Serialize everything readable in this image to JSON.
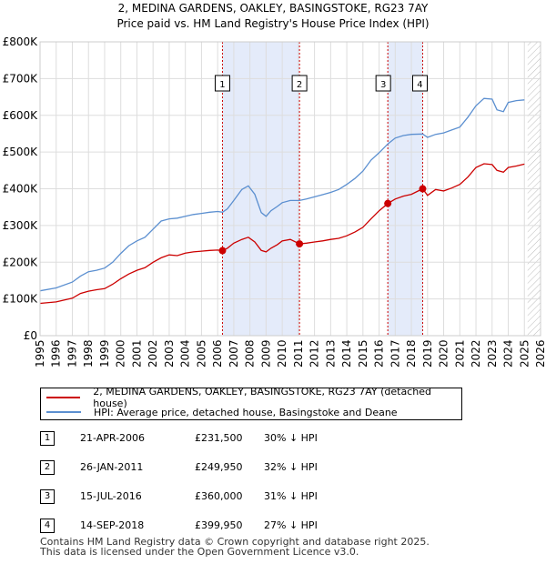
{
  "title_line1": "2, MEDINA GARDENS, OAKLEY, BASINGSTOKE, RG23 7AY",
  "title_line2": "Price paid vs. HM Land Registry's House Price Index (HPI)",
  "colors": {
    "property": "#cc0000",
    "hpi": "#5b8fd0",
    "shade": "#e4ebfa",
    "marker_line": "#cc0000",
    "hatch": "#bbbbbb"
  },
  "chart_data": {
    "type": "line",
    "title": "2, MEDINA GARDENS, OAKLEY, BASINGSTOKE, RG23 7AY — Price paid vs. HM Land Registry's House Price Index (HPI)",
    "xlim": [
      1995,
      2026
    ],
    "ylim": [
      0,
      800000
    ],
    "x_ticks": [
      "1995",
      "1996",
      "1997",
      "1998",
      "1999",
      "2000",
      "2001",
      "2002",
      "2003",
      "2004",
      "2005",
      "2006",
      "2007",
      "2008",
      "2009",
      "2010",
      "2011",
      "2012",
      "2013",
      "2014",
      "2015",
      "2016",
      "2017",
      "2018",
      "2019",
      "2020",
      "2021",
      "2022",
      "2023",
      "2024",
      "2025",
      "2026"
    ],
    "y_ticks": [
      {
        "value": 0,
        "label": "£0"
      },
      {
        "value": 100000,
        "label": "£100K"
      },
      {
        "value": 200000,
        "label": "£200K"
      },
      {
        "value": 300000,
        "label": "£300K"
      },
      {
        "value": 400000,
        "label": "£400K"
      },
      {
        "value": 500000,
        "label": "£500K"
      },
      {
        "value": 600000,
        "label": "£600K"
      },
      {
        "value": 700000,
        "label": "£700K"
      },
      {
        "value": 800000,
        "label": "£800K"
      }
    ],
    "shaded_ranges": [
      [
        2006.3,
        2011.07
      ],
      [
        2016.54,
        2018.7
      ]
    ],
    "future_from": 2025.2,
    "series": [
      {
        "name": "2, MEDINA GARDENS, OAKLEY, BASINGSTOKE, RG23 7AY (detached house)",
        "color": "#cc0000",
        "x": [
          1995.0,
          1996.0,
          1997.0,
          1997.5,
          1998.0,
          1998.5,
          1999.0,
          1999.5,
          2000.0,
          2000.5,
          2001.0,
          2001.5,
          2002.0,
          2002.5,
          2003.0,
          2003.5,
          2004.0,
          2004.5,
          2005.0,
          2005.5,
          2006.0,
          2006.3,
          2006.6,
          2007.0,
          2007.5,
          2007.9,
          2008.3,
          2008.7,
          2009.0,
          2009.3,
          2009.7,
          2010.0,
          2010.5,
          2011.07,
          2011.5,
          2012.0,
          2012.5,
          2013.0,
          2013.5,
          2014.0,
          2014.5,
          2015.0,
          2015.5,
          2016.0,
          2016.54,
          2017.0,
          2017.5,
          2018.0,
          2018.7,
          2019.0,
          2019.5,
          2020.0,
          2020.5,
          2021.0,
          2021.5,
          2022.0,
          2022.5,
          2023.0,
          2023.3,
          2023.7,
          2024.0,
          2024.5,
          2025.0
        ],
        "values": [
          88000,
          92000,
          102000,
          115000,
          121000,
          125000,
          128000,
          140000,
          155000,
          168000,
          178000,
          185000,
          200000,
          212000,
          220000,
          218000,
          225000,
          228000,
          230000,
          232000,
          233000,
          231500,
          238000,
          252000,
          262000,
          268000,
          255000,
          232000,
          228000,
          238000,
          248000,
          258000,
          262000,
          249950,
          252000,
          255000,
          258000,
          262000,
          265000,
          272000,
          282000,
          295000,
          318000,
          340000,
          360000,
          372000,
          380000,
          385000,
          399950,
          382000,
          398000,
          394000,
          402000,
          412000,
          432000,
          458000,
          468000,
          466000,
          450000,
          445000,
          458000,
          462000,
          467000
        ]
      },
      {
        "name": "HPI: Average price, detached house, Basingstoke and Deane",
        "color": "#5b8fd0",
        "x": [
          1995.0,
          1996.0,
          1997.0,
          1997.5,
          1998.0,
          1998.5,
          1999.0,
          1999.5,
          2000.0,
          2000.5,
          2001.0,
          2001.5,
          2002.0,
          2002.5,
          2003.0,
          2003.5,
          2004.0,
          2004.5,
          2005.0,
          2005.5,
          2006.0,
          2006.3,
          2006.6,
          2007.0,
          2007.5,
          2007.9,
          2008.3,
          2008.7,
          2009.0,
          2009.3,
          2009.7,
          2010.0,
          2010.5,
          2011.07,
          2011.5,
          2012.0,
          2012.5,
          2013.0,
          2013.5,
          2014.0,
          2014.5,
          2015.0,
          2015.5,
          2016.0,
          2016.54,
          2017.0,
          2017.5,
          2018.0,
          2018.7,
          2019.0,
          2019.5,
          2020.0,
          2020.5,
          2021.0,
          2021.5,
          2022.0,
          2022.5,
          2023.0,
          2023.3,
          2023.7,
          2024.0,
          2024.5,
          2025.0
        ],
        "values": [
          122000,
          130000,
          146000,
          162000,
          174000,
          178000,
          184000,
          200000,
          224000,
          245000,
          258000,
          268000,
          290000,
          312000,
          318000,
          320000,
          325000,
          330000,
          333000,
          336000,
          338000,
          336000,
          345000,
          368000,
          398000,
          408000,
          385000,
          335000,
          325000,
          340000,
          352000,
          362000,
          368000,
          368000,
          372000,
          378000,
          384000,
          390000,
          398000,
          412000,
          428000,
          448000,
          478000,
          498000,
          522000,
          538000,
          545000,
          548000,
          549000,
          540000,
          548000,
          552000,
          560000,
          568000,
          595000,
          626000,
          646000,
          644000,
          615000,
          610000,
          635000,
          640000,
          642000
        ]
      }
    ],
    "sales": [
      {
        "label": "1",
        "x": 2006.3,
        "y": 231500
      },
      {
        "label": "2",
        "x": 2011.07,
        "y": 249950
      },
      {
        "label": "3",
        "x": 2016.54,
        "y": 360000
      },
      {
        "label": "4",
        "x": 2018.7,
        "y": 399950
      }
    ]
  },
  "legend": {
    "property_label": "2, MEDINA GARDENS, OAKLEY, BASINGSTOKE, RG23 7AY (detached house)",
    "hpi_label": "HPI: Average price, detached house, Basingstoke and Deane"
  },
  "transactions": [
    {
      "num": "1",
      "date": "21-APR-2006",
      "price": "£231,500",
      "hpi": "30% ↓ HPI"
    },
    {
      "num": "2",
      "date": "26-JAN-2011",
      "price": "£249,950",
      "hpi": "32% ↓ HPI"
    },
    {
      "num": "3",
      "date": "15-JUL-2016",
      "price": "£360,000",
      "hpi": "31% ↓ HPI"
    },
    {
      "num": "4",
      "date": "14-SEP-2018",
      "price": "£399,950",
      "hpi": "27% ↓ HPI"
    }
  ],
  "footer": {
    "line1": "Contains HM Land Registry data © Crown copyright and database right 2025.",
    "line2": "This data is licensed under the Open Government Licence v3.0."
  }
}
